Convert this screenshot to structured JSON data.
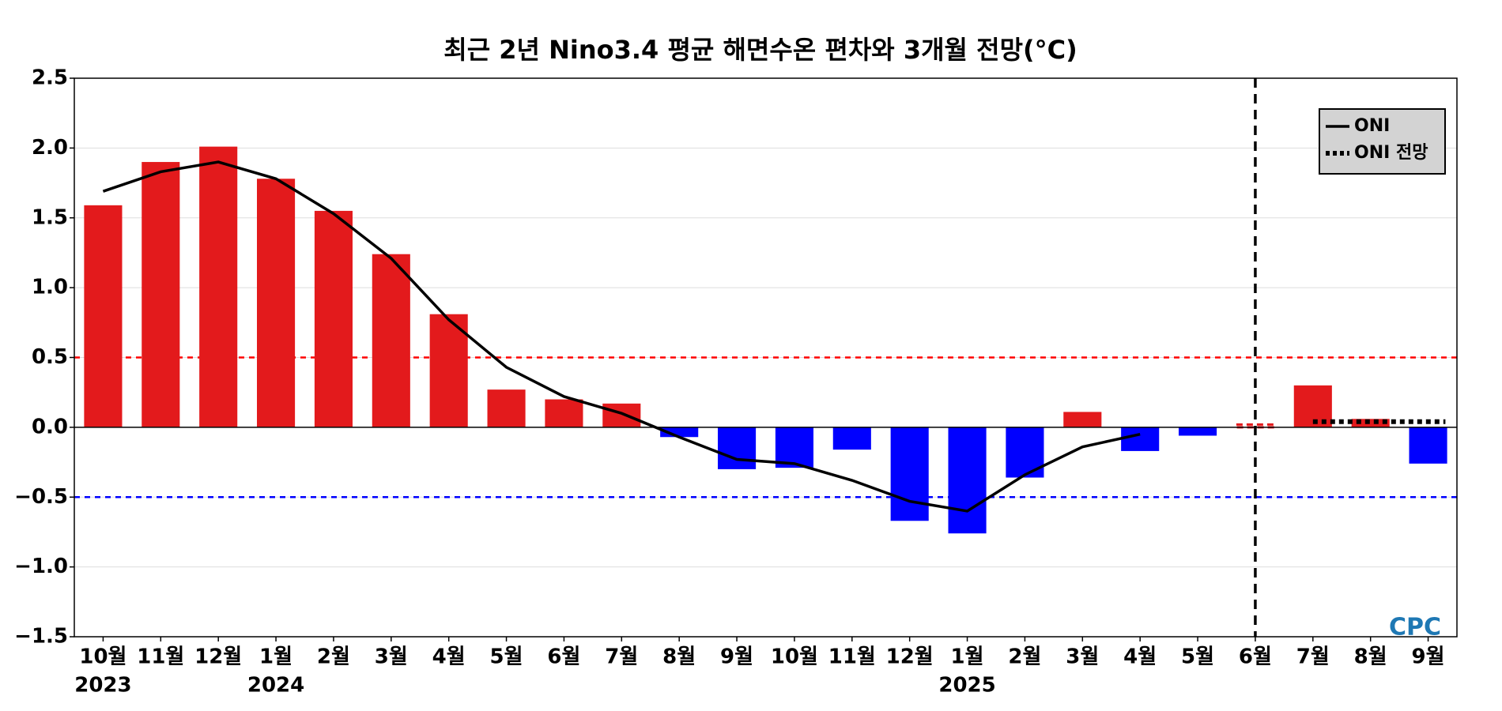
{
  "chart_data": {
    "type": "bar",
    "title": "최근 2년 Nino3.4 평균 해면수온 편차와 3개월 전망(°C)",
    "categories": [
      "10월",
      "11월",
      "12월",
      "1월",
      "2월",
      "3월",
      "4월",
      "5월",
      "6월",
      "7월",
      "8월",
      "9월",
      "10월",
      "11월",
      "12월",
      "1월",
      "2월",
      "3월",
      "4월",
      "5월",
      "6월",
      "7월",
      "8월",
      "9월"
    ],
    "year_labels": [
      "2023",
      null,
      null,
      "2024",
      null,
      null,
      null,
      null,
      null,
      null,
      null,
      null,
      null,
      null,
      null,
      "2025",
      null,
      null,
      null,
      null,
      null,
      null,
      null,
      null
    ],
    "values": [
      1.59,
      1.9,
      2.01,
      1.78,
      1.55,
      1.24,
      0.81,
      0.27,
      0.2,
      0.17,
      -0.07,
      -0.3,
      -0.29,
      -0.16,
      -0.67,
      -0.76,
      -0.36,
      0.11,
      -0.17,
      -0.06,
      0.02,
      0.3,
      0.06,
      -0.26
    ],
    "positive_color": "#e31a1c",
    "negative_color": "#0000ff",
    "series": [
      {
        "name": "ONI",
        "color": "#000000",
        "style": "solid",
        "values": [
          1.69,
          1.83,
          1.9,
          1.78,
          1.53,
          1.21,
          0.77,
          0.43,
          0.22,
          0.1,
          -0.07,
          -0.23,
          -0.26,
          -0.38,
          -0.53,
          -0.6,
          -0.34,
          -0.14,
          -0.05,
          null,
          null,
          null,
          null,
          null
        ]
      },
      {
        "name": "ONI 전망",
        "color": "#000000",
        "style": "dotted",
        "values": [
          null,
          null,
          null,
          null,
          null,
          null,
          null,
          null,
          null,
          null,
          null,
          null,
          null,
          null,
          null,
          null,
          null,
          null,
          null,
          null,
          null,
          0.04,
          0.04,
          0.04
        ]
      }
    ],
    "thresholds": [
      {
        "value": 0.5,
        "color": "#ff0000"
      },
      {
        "value": -0.5,
        "color": "#0000ff"
      }
    ],
    "forecast_start": "6월",
    "ylim": [
      -1.5,
      2.5
    ],
    "yticks": [
      {
        "value": -1.5,
        "label": "−1.5"
      },
      {
        "value": -1,
        "label": "−1.0"
      },
      {
        "value": -0.5,
        "label": "−0.5"
      },
      {
        "value": 0,
        "label": "0.0"
      },
      0.5,
      {
        "value": 1,
        "label": "1.0"
      },
      1.5,
      {
        "value": 2,
        "label": "2.0"
      },
      2.5
    ],
    "grid": true,
    "legend": "upper right",
    "logo": "CPC"
  }
}
